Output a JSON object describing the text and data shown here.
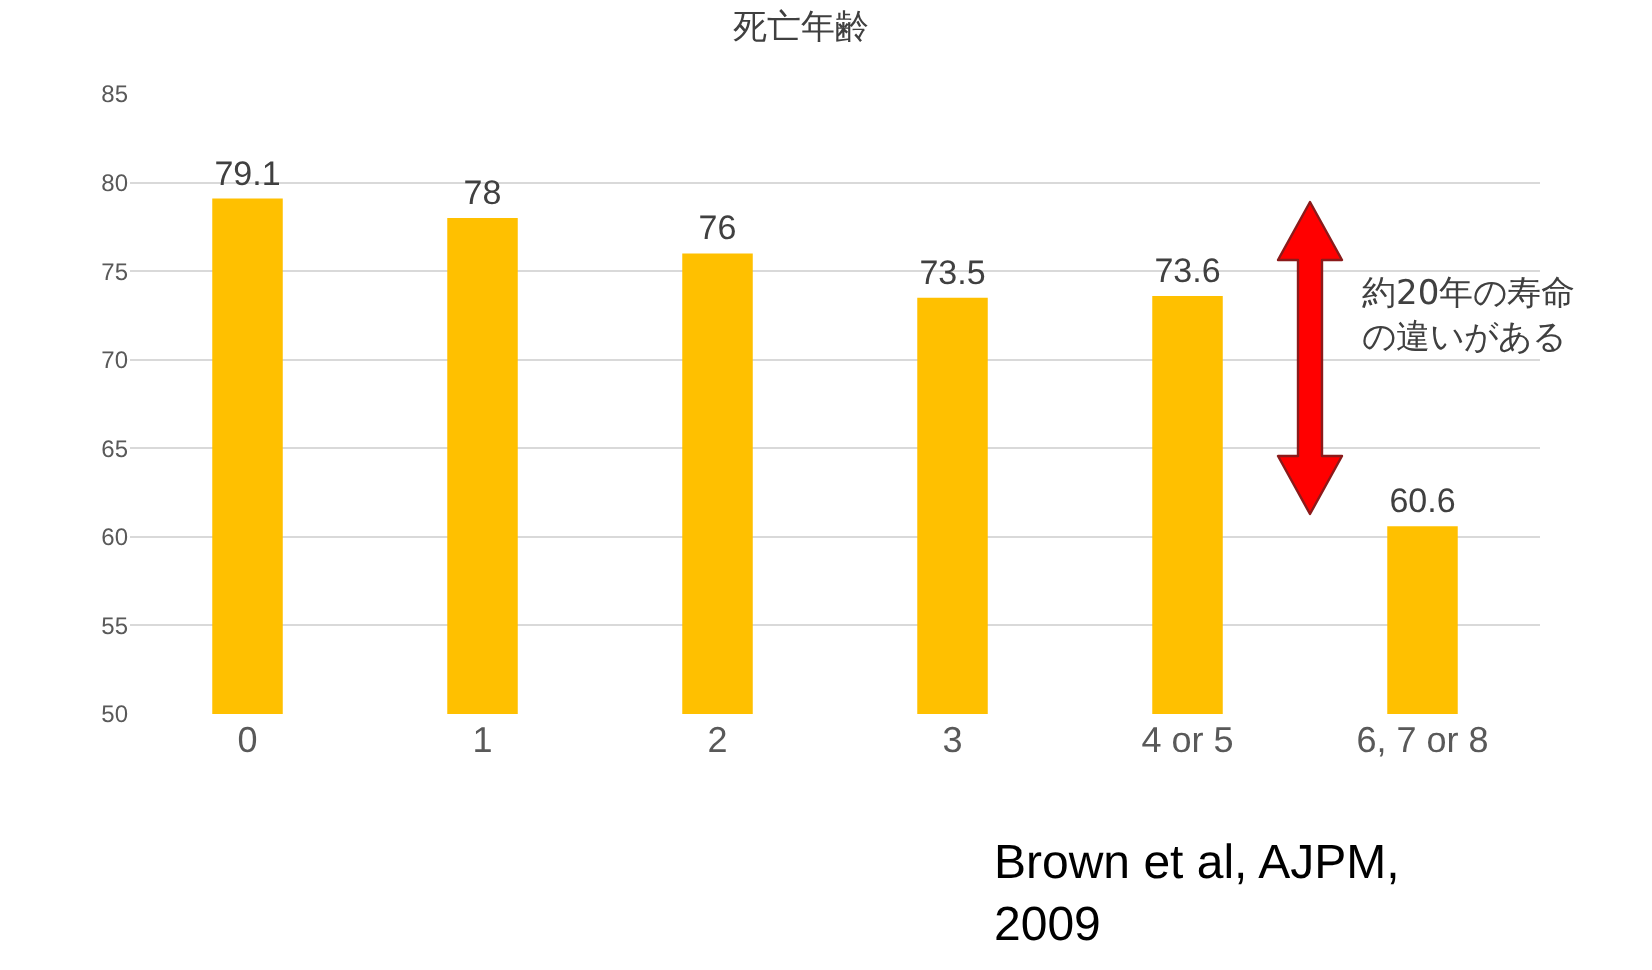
{
  "chart_data": {
    "type": "bar",
    "title": "死亡年齢",
    "categories": [
      "0",
      "1",
      "2",
      "3",
      "4 or 5",
      "6, 7 or 8"
    ],
    "values": [
      79.1,
      78,
      76,
      73.5,
      73.6,
      60.6
    ],
    "color": "#ffc000",
    "ylim": [
      50,
      85
    ],
    "yticks": [
      50,
      55,
      60,
      65,
      70,
      75,
      80,
      85
    ],
    "grid": "y",
    "data_labels": true,
    "legend": false,
    "annotations": [
      "約20年の寿命の違いがある",
      "Brown et al, AJPM,\n2009"
    ]
  }
}
